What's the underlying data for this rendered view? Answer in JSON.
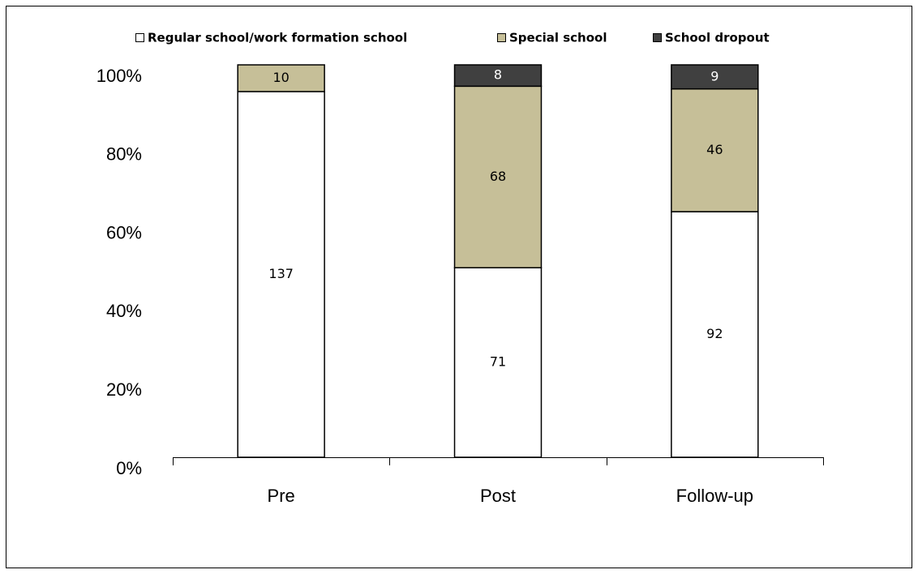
{
  "chart_data": {
    "type": "bar",
    "stacked": "percent",
    "categories": [
      "Pre",
      "Post",
      "Follow-up"
    ],
    "series": [
      {
        "name": "Regular school/work formation school",
        "color": "#ffffff",
        "values": [
          137,
          71,
          92
        ]
      },
      {
        "name": "Special school",
        "color": "#c6bf98",
        "values": [
          10,
          68,
          46
        ]
      },
      {
        "name": "School dropout",
        "color": "#404040",
        "values": [
          null,
          8,
          9
        ]
      }
    ],
    "ylim": [
      0,
      100
    ],
    "yticks": [
      {
        "value": 0,
        "label": "0%"
      },
      {
        "value": 20,
        "label": "20%"
      },
      {
        "value": 40,
        "label": "40%"
      },
      {
        "value": 60,
        "label": "60%"
      },
      {
        "value": 80,
        "label": "80%"
      },
      {
        "value": 100,
        "label": "100%"
      }
    ],
    "legend": "top"
  }
}
